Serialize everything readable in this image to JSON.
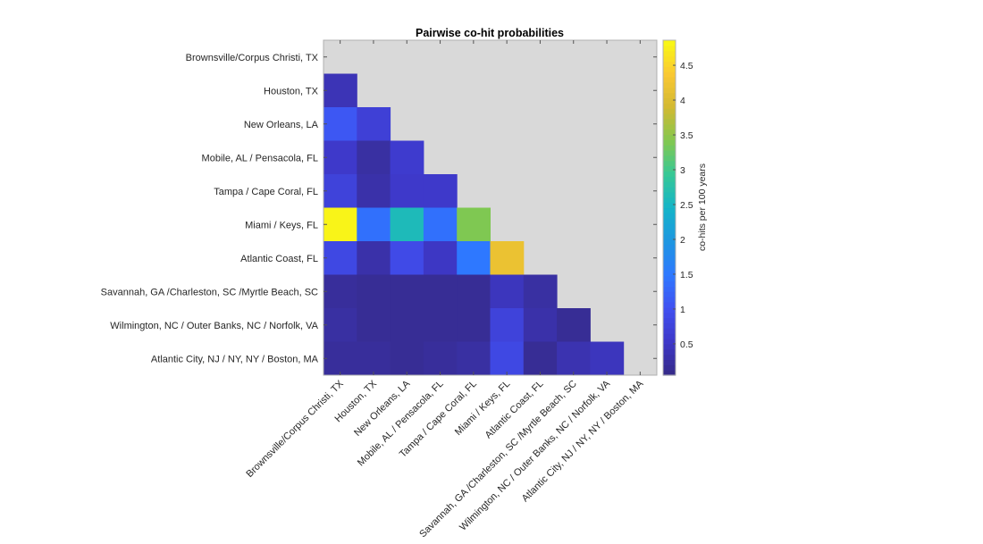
{
  "chart_data": {
    "type": "heatmap",
    "title": "Pairwise co-hit probabilities",
    "xlabel": "",
    "ylabel": "",
    "categories": [
      "Brownsville/Corpus Christi, TX",
      "Houston, TX",
      "New Orleans, LA",
      "Mobile, AL / Pensacola, FL",
      "Tampa / Cape Coral, FL",
      "Miami / Keys, FL",
      "Atlantic Coast, FL",
      "Savannah, GA /Charleston, SC /Myrtle Beach, SC",
      "Wilmington, NC / Outer Banks, NC / Norfolk, VA",
      "Atlantic City, NJ / NY, NY / Boston, MA"
    ],
    "lower_triangle_values": [
      [],
      [
        0.4
      ],
      [
        1.1,
        0.7
      ],
      [
        0.55,
        0.25,
        0.6
      ],
      [
        0.75,
        0.3,
        0.55,
        0.55
      ],
      [
        4.8,
        1.4,
        2.6,
        1.4,
        3.4
      ],
      [
        0.85,
        0.3,
        0.9,
        0.5,
        1.5,
        4.2
      ],
      [
        0.2,
        0.15,
        0.15,
        0.15,
        0.15,
        0.45,
        0.25
      ],
      [
        0.25,
        0.15,
        0.15,
        0.15,
        0.15,
        0.75,
        0.3,
        0.15
      ],
      [
        0.2,
        0.2,
        0.15,
        0.2,
        0.25,
        0.85,
        0.15,
        0.35,
        0.45
      ]
    ],
    "missing_color": "#d9d9d9",
    "colormap": "parula",
    "colorbar": {
      "label": "co-hits per 100 years",
      "range": [
        0.05,
        4.86
      ],
      "ticks": [
        0.5,
        1,
        1.5,
        2,
        2.5,
        3,
        3.5,
        4,
        4.5
      ],
      "tick_labels": [
        "0.5",
        "1",
        "1.5",
        "2",
        "2.5",
        "3",
        "3.5",
        "4",
        "4.5"
      ]
    }
  }
}
